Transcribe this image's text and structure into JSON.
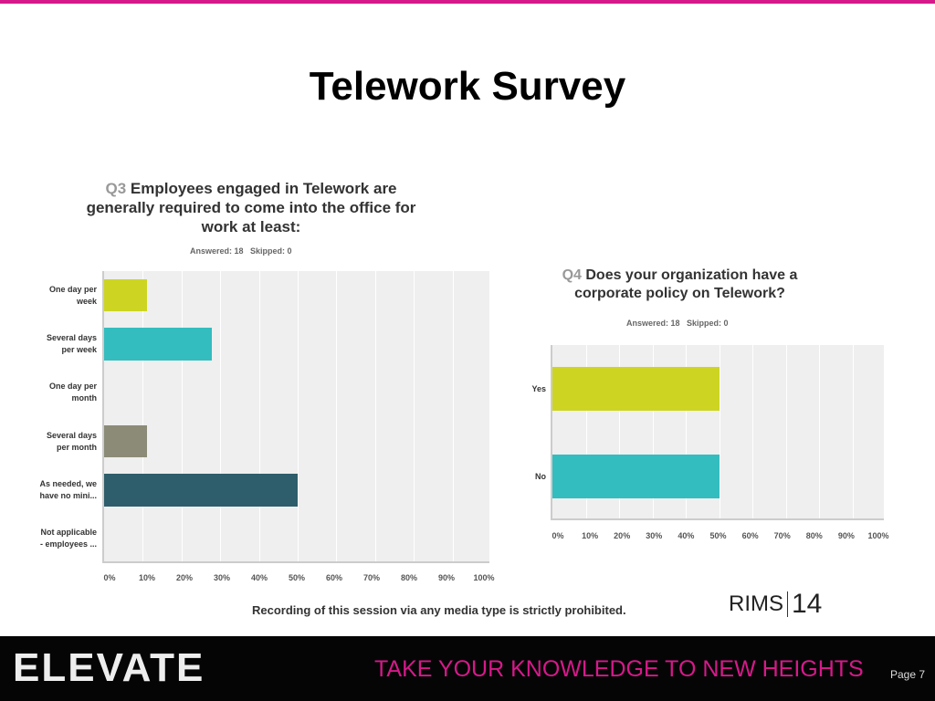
{
  "slide": {
    "title": "Telework Survey",
    "notice": "Recording of this session via any media type is strictly prohibited.",
    "page": "Page 7",
    "footer_brand": "ELEVATE",
    "footer_tagline": "TAKE YOUR KNOWLEDGE TO NEW HEIGHTS",
    "logo_text": "RIMS",
    "logo_number": "14"
  },
  "chart_data": [
    {
      "type": "bar",
      "orientation": "horizontal",
      "qnum": "Q3",
      "title": "Employees engaged in Telework are generally required to come into the office for work at least:",
      "answered": "Answered: 18",
      "skipped": "Skipped: 0",
      "categories": [
        [
          "One day per",
          "week"
        ],
        [
          "Several days",
          "per week"
        ],
        [
          "One day per",
          "month"
        ],
        [
          "Several days",
          "per month"
        ],
        [
          "As needed, we",
          "have no mini..."
        ],
        [
          "Not applicable",
          "- employees ..."
        ]
      ],
      "values": [
        11.11,
        27.78,
        0,
        11.11,
        50,
        0
      ],
      "colors": [
        "#cdd522",
        "#33bdbf",
        "#cccccc",
        "#8c8b78",
        "#2e5e6b",
        "#cccccc"
      ],
      "xlim": [
        0,
        100
      ],
      "ticks": [
        "0%",
        "10%",
        "20%",
        "30%",
        "40%",
        "50%",
        "60%",
        "70%",
        "80%",
        "90%",
        "100%"
      ]
    },
    {
      "type": "bar",
      "orientation": "horizontal",
      "qnum": "Q4",
      "title": "Does your organization have a corporate policy on Telework?",
      "answered": "Answered: 18",
      "skipped": "Skipped: 0",
      "categories": [
        [
          "Yes"
        ],
        [
          "No"
        ]
      ],
      "values": [
        50,
        50
      ],
      "colors": [
        "#cdd522",
        "#33bdbf"
      ],
      "xlim": [
        0,
        100
      ],
      "ticks": [
        "0%",
        "10%",
        "20%",
        "30%",
        "40%",
        "50%",
        "60%",
        "70%",
        "80%",
        "90%",
        "100%"
      ]
    }
  ]
}
